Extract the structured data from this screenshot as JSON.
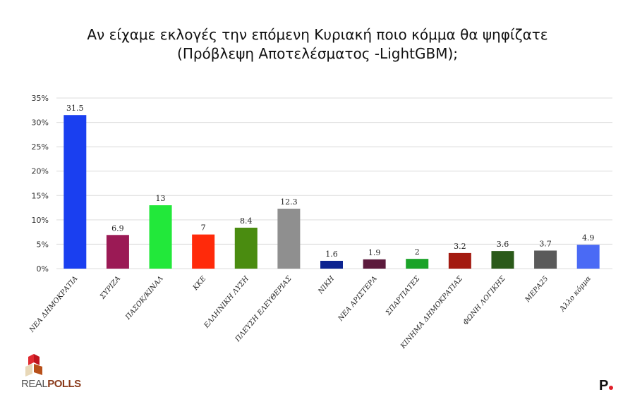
{
  "title_line1": "Αν είχαμε εκλογές την επόμενη Κυριακή ποιο κόμμα θα ψηφίζατε",
  "title_line2": "(Πρόβλεψη Αποτελέσματος -LightGBM);",
  "logo_left": "REALPOLLS",
  "logo_left_a": "REAL",
  "logo_left_b": "POLLS",
  "logo_right": "P",
  "chart_data": {
    "type": "bar",
    "title": "Αν είχαμε εκλογές την επόμενη Κυριακή ποιο κόμμα θα ψηφίζατε (Πρόβλεψη Αποτελέσματος -LightGBM);",
    "xlabel": "",
    "ylabel": "",
    "ylim": [
      0,
      35
    ],
    "yticks": [
      "0%",
      "5%",
      "10%",
      "15%",
      "20%",
      "25%",
      "30%",
      "35%"
    ],
    "grid": true,
    "categories": [
      "ΝΕΑ ΔΗΜΟΚΡΑΤΙΑ",
      "ΣΥΡΙΖΑ",
      "ΠΑΣΟΚ/ΚΙΝΑΛ",
      "ΚΚΕ",
      "ΕΛΛΗΝΙΚΗ ΛΥΣΗ",
      "ΠΛΕΥΣΗ ΕΛΕΥΘΕΡΙΑΣ",
      "ΝΙΚΗ",
      "ΝΕΑ ΑΡΙΣΤΕΡΑ",
      "ΣΠΑΡΤΙΑΤΕΣ",
      "ΚΙΝΗΜΑ ΔΗΜΟΚΡΑΤΙΑΣ",
      "ΦΩΝΗ ΛΟΓΙΚΗΣ",
      "ΜΕΡΑ25",
      "Άλλο κόμμα"
    ],
    "values": [
      31.5,
      6.9,
      13,
      7,
      8.4,
      12.3,
      1.6,
      1.9,
      2,
      3.2,
      3.6,
      3.7,
      4.9
    ],
    "labels": [
      "31.5",
      "6.9",
      "13",
      "7",
      "8.4",
      "12.3",
      "1.6",
      "1.9",
      "2",
      "3.2",
      "3.6",
      "3.7",
      "4.9"
    ],
    "colors": [
      "#1a3ff0",
      "#9b1a55",
      "#22e83a",
      "#ff2a0a",
      "#4a8c10",
      "#8f8f8f",
      "#0c2390",
      "#5c1a3c",
      "#1aa328",
      "#a31a10",
      "#2b5a1a",
      "#5a5a5a",
      "#4a6af5"
    ]
  }
}
